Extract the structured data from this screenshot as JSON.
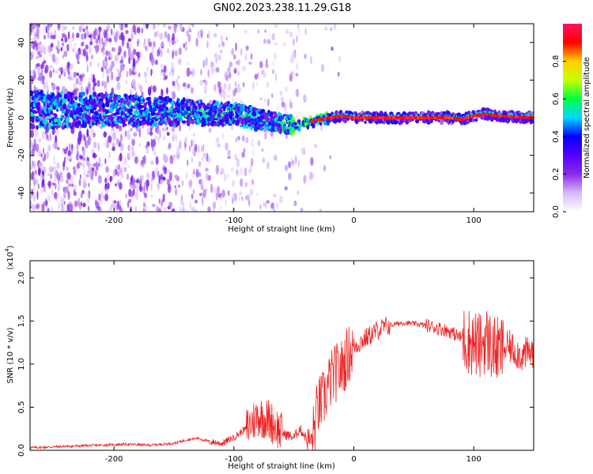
{
  "figure": {
    "title": "GN02.2023.238.11.29.G18"
  },
  "chart_data": [
    {
      "type": "heatmap",
      "xlabel": "Height of straight line (km)",
      "ylabel": "Frequency (Hz)",
      "xlim": [
        -270,
        150
      ],
      "ylim": [
        -50,
        50
      ],
      "xticks": [
        -200,
        -100,
        0,
        100
      ],
      "yticks": [
        -40,
        -20,
        0,
        20,
        40
      ],
      "colorbar": {
        "label": "Normalized spectral amplitude",
        "range": [
          0,
          1
        ],
        "ticks": [
          0.0,
          0.2,
          0.4,
          0.6,
          0.8
        ],
        "tick_labels": [
          "0.0",
          "0.2",
          "0.4",
          "0.6",
          "0.8"
        ],
        "colormap": [
          "#ffffff",
          "#d8b8ff",
          "#8a2be2",
          "#5500ff",
          "#0000ff",
          "#00d8ff",
          "#00ff40",
          "#c8ff00",
          "#ffd000",
          "#ff0000",
          "#ff1060"
        ]
      },
      "ridge": [
        {
          "x": -200,
          "y": 4
        },
        {
          "x": -150,
          "y": 3
        },
        {
          "x": -120,
          "y": 2
        },
        {
          "x": -100,
          "y": 2
        },
        {
          "x": -80,
          "y": -1
        },
        {
          "x": -60,
          "y": -3
        },
        {
          "x": -50,
          "y": -4
        },
        {
          "x": -40,
          "y": -3
        },
        {
          "x": -30,
          "y": -1
        },
        {
          "x": -20,
          "y": 0
        },
        {
          "x": -10,
          "y": 1
        },
        {
          "x": 0,
          "y": 0
        },
        {
          "x": 50,
          "y": 0
        },
        {
          "x": 80,
          "y": 0
        },
        {
          "x": 90,
          "y": -1
        },
        {
          "x": 100,
          "y": 1
        },
        {
          "x": 110,
          "y": 2
        },
        {
          "x": 120,
          "y": 1
        },
        {
          "x": 150,
          "y": 0
        }
      ],
      "grid": false
    },
    {
      "type": "line",
      "xlabel": "Height of straight line (km)",
      "ylabel": "SNR (10 * v/v)",
      "y_multiplier_label": "(x10",
      "y_multiplier_exp": "4",
      "xlim": [
        -270,
        150
      ],
      "ylim": [
        0,
        2.2
      ],
      "xticks": [
        -200,
        -100,
        0,
        100
      ],
      "yticks": [
        0.0,
        0.5,
        1.0,
        1.5,
        2.0
      ],
      "ytick_labels": [
        "0.0",
        "0.5",
        "1.0",
        "1.5",
        "2.0"
      ],
      "color": "#ee2222",
      "series": [
        {
          "x": [
            -270,
            -250,
            -230,
            -210,
            -190,
            -170,
            -150,
            -140,
            -130,
            -120,
            -110,
            -100,
            -90,
            -80,
            -70,
            -60,
            -50,
            -45,
            -40,
            -35,
            -30,
            -25,
            -20,
            -15,
            -10,
            -5,
            0,
            10,
            20,
            30,
            40,
            50,
            60,
            70,
            80,
            90,
            100,
            105,
            110,
            115,
            120,
            130,
            140,
            150
          ],
          "y": [
            0.03,
            0.04,
            0.05,
            0.06,
            0.07,
            0.06,
            0.08,
            0.12,
            0.14,
            0.1,
            0.08,
            0.15,
            0.25,
            0.4,
            0.35,
            0.2,
            0.15,
            0.25,
            0.15,
            0.1,
            0.5,
            0.6,
            0.8,
            0.9,
            0.95,
            1.1,
            1.2,
            1.3,
            1.4,
            1.45,
            1.48,
            1.47,
            1.45,
            1.42,
            1.38,
            1.3,
            1.25,
            1.2,
            1.3,
            1.2,
            1.15,
            1.2,
            1.1,
            1.15
          ]
        }
      ],
      "grid": false
    }
  ]
}
